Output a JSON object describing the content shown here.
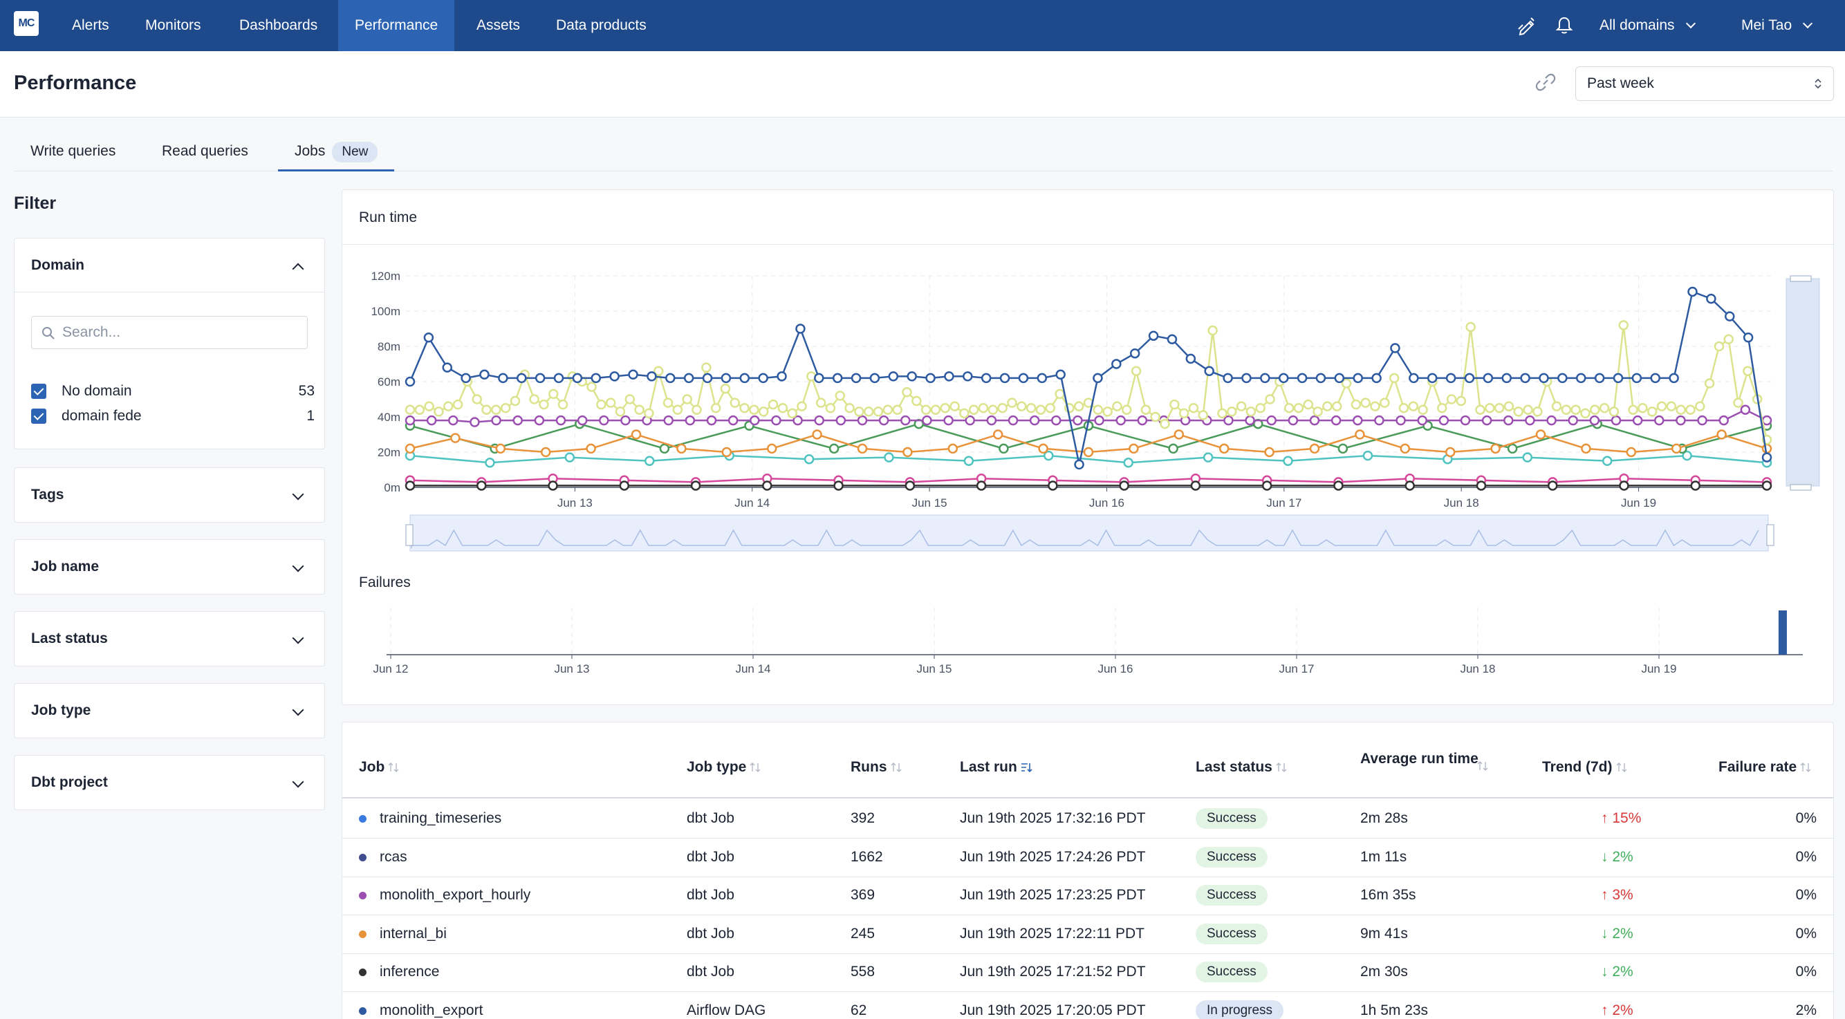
{
  "nav": {
    "logo": "MC",
    "items": [
      "Alerts",
      "Monitors",
      "Dashboards",
      "Performance",
      "Assets",
      "Data products"
    ],
    "active": "Performance",
    "domain_selector": "All domains",
    "user": "Mei Tao"
  },
  "header": {
    "title": "Performance",
    "time_range": "Past week"
  },
  "tabs": {
    "items": [
      "Write queries",
      "Read queries",
      "Jobs"
    ],
    "active": "Jobs",
    "jobs_badge": "New"
  },
  "filter": {
    "title": "Filter",
    "domain": {
      "label": "Domain",
      "search_placeholder": "Search...",
      "options": [
        {
          "label": "No domain",
          "count": "53",
          "checked": true
        },
        {
          "label": "domain fede",
          "count": "1",
          "checked": true
        }
      ]
    },
    "sections": [
      "Tags",
      "Job name",
      "Last status",
      "Job type",
      "Dbt project"
    ]
  },
  "chart_card": {
    "run_time_title": "Run time",
    "failures_title": "Failures"
  },
  "chart_data": [
    {
      "type": "line",
      "title": "Run time",
      "y_ticks": [
        "0m",
        "20m",
        "40m",
        "60m",
        "80m",
        "100m",
        "120m"
      ],
      "ylim": [
        0,
        120
      ],
      "x_ticks": [
        "Jun 13",
        "Jun 14",
        "Jun 15",
        "Jun 16",
        "Jun 17",
        "Jun 18",
        "Jun 19"
      ],
      "grid": true,
      "series": [
        {
          "color": "#2d5aa0",
          "values": [
            60,
            85,
            68,
            62,
            64,
            62,
            62,
            62,
            62,
            62,
            62,
            63,
            64,
            63,
            62,
            62,
            62,
            62,
            62,
            62,
            63,
            90,
            62,
            62,
            62,
            62,
            63,
            63,
            62,
            63,
            63,
            62,
            62,
            62,
            62,
            64,
            13,
            62,
            70,
            76,
            86,
            84,
            73,
            66,
            62,
            62,
            62,
            62,
            62,
            62,
            62,
            62,
            62,
            79,
            62,
            62,
            62,
            62,
            62,
            62,
            62,
            62,
            62,
            62,
            62,
            62,
            62,
            62,
            62,
            111,
            107,
            97,
            85,
            17
          ]
        },
        {
          "color": "#dbe48c",
          "values": [
            44,
            44,
            46,
            43,
            46,
            47,
            60,
            50,
            44,
            44,
            45,
            49,
            64,
            50,
            47,
            53,
            47,
            63,
            60,
            57,
            47,
            48,
            43,
            50,
            44,
            42,
            66,
            48,
            44,
            50,
            44,
            68,
            45,
            56,
            48,
            45,
            44,
            43,
            47,
            45,
            42,
            46,
            63,
            48,
            45,
            52,
            45,
            43,
            43,
            43,
            44,
            44,
            54,
            49,
            44,
            44,
            45,
            46,
            42,
            44,
            45,
            44,
            45,
            48,
            46,
            45,
            44,
            45,
            53,
            45,
            46,
            48,
            44,
            43,
            46,
            44,
            66,
            44,
            40,
            36,
            47,
            42,
            45,
            41,
            89,
            42,
            43,
            46,
            43,
            45,
            50,
            60,
            45,
            45,
            47,
            43,
            46,
            46,
            59,
            47,
            48,
            46,
            48,
            62,
            45,
            46,
            44,
            60,
            45,
            50,
            49,
            91,
            44,
            45,
            45,
            46,
            43,
            44,
            43,
            60,
            46,
            44,
            44,
            42,
            44,
            45,
            43,
            92,
            44,
            45,
            43,
            46,
            46,
            44,
            44,
            46,
            59,
            80,
            84,
            48,
            66,
            50,
            27
          ]
        },
        {
          "color": "#9b4fb0",
          "values": [
            38,
            38,
            38,
            37,
            38,
            38,
            38,
            38,
            38,
            38,
            38,
            38,
            38,
            38,
            38,
            38,
            38,
            38,
            38,
            38,
            38,
            38,
            38,
            38,
            38,
            38,
            38,
            38,
            38,
            38,
            38,
            38,
            38,
            38,
            38,
            38,
            38,
            38,
            38,
            38,
            38,
            38,
            38,
            38,
            38,
            38,
            38,
            38,
            38,
            38,
            38,
            38,
            38,
            38,
            38,
            38,
            38,
            38,
            38,
            38,
            38,
            38,
            44,
            38
          ]
        },
        {
          "color": "#e8923a",
          "values": [
            22,
            28,
            22,
            20,
            22,
            30,
            22,
            20,
            22,
            30,
            22,
            20,
            22,
            30,
            22,
            20,
            22,
            30,
            22,
            20,
            22,
            30,
            22,
            20,
            22,
            30,
            22,
            20,
            22,
            30,
            22
          ]
        },
        {
          "color": "#4a9a5a",
          "values": [
            35,
            22,
            36,
            22,
            35,
            22,
            36,
            22,
            35,
            22,
            36,
            22,
            35,
            22,
            36,
            22,
            35
          ]
        },
        {
          "color": "#4ec3c0",
          "values": [
            18,
            14,
            17,
            15,
            18,
            16,
            17,
            15,
            18,
            14,
            17,
            15,
            18,
            16,
            17,
            15,
            18,
            14
          ]
        },
        {
          "color": "#d5479a",
          "values": [
            4,
            3,
            5,
            4,
            3,
            5,
            4,
            3,
            5,
            4,
            3,
            5,
            4,
            3,
            5,
            4,
            3,
            5,
            4,
            3
          ]
        },
        {
          "color": "#333333",
          "values": [
            1,
            1,
            1,
            1,
            1,
            1,
            1,
            1,
            1,
            1,
            1,
            1,
            1,
            1,
            1,
            1,
            1,
            1,
            1,
            1
          ]
        }
      ]
    },
    {
      "type": "bar",
      "title": "Failures",
      "x_ticks": [
        "Jun 12",
        "Jun 13",
        "Jun 14",
        "Jun 15",
        "Jun 16",
        "Jun 17",
        "Jun 18",
        "Jun 19"
      ],
      "bars": [
        {
          "x": "Jun 19",
          "offset_days": 0.66,
          "value": 1,
          "color": "#2d5aa0"
        }
      ]
    }
  ],
  "table": {
    "columns": [
      "Job",
      "Job type",
      "Runs",
      "Last run",
      "Last status",
      "Average run time",
      "Trend (7d)",
      "Failure rate"
    ],
    "rows": [
      {
        "color": "#3b7be0",
        "job": "training_timeseries",
        "type": "dbt Job",
        "runs": "392",
        "last_run": "Jun 19th 2025 17:32:16 PDT",
        "status": "Success",
        "avg": "2m 28s",
        "trend": "↑ 15%",
        "trend_dir": "up",
        "failure": "0%"
      },
      {
        "color": "#3e4e8f",
        "job": "rcas",
        "type": "dbt Job",
        "runs": "1662",
        "last_run": "Jun 19th 2025 17:24:26 PDT",
        "status": "Success",
        "avg": "1m 11s",
        "trend": "↓ 2%",
        "trend_dir": "down",
        "failure": "0%"
      },
      {
        "color": "#9b4fb0",
        "job": "monolith_export_hourly",
        "type": "dbt Job",
        "runs": "369",
        "last_run": "Jun 19th 2025 17:23:25 PDT",
        "status": "Success",
        "avg": "16m 35s",
        "trend": "↑ 3%",
        "trend_dir": "up",
        "failure": "0%"
      },
      {
        "color": "#e8923a",
        "job": "internal_bi",
        "type": "dbt Job",
        "runs": "245",
        "last_run": "Jun 19th 2025 17:22:11 PDT",
        "status": "Success",
        "avg": "9m 41s",
        "trend": "↓ 2%",
        "trend_dir": "down",
        "failure": "0%"
      },
      {
        "color": "#333333",
        "job": "inference",
        "type": "dbt Job",
        "runs": "558",
        "last_run": "Jun 19th 2025 17:21:52 PDT",
        "status": "Success",
        "avg": "2m 30s",
        "trend": "↓ 2%",
        "trend_dir": "down",
        "failure": "0%"
      },
      {
        "color": "#2d5aa0",
        "job": "monolith_export",
        "type": "Airflow DAG",
        "runs": "62",
        "last_run": "Jun 19th 2025 17:20:05 PDT",
        "status": "In progress",
        "avg": "1h 5m 23s",
        "trend": "↑ 2%",
        "trend_dir": "up",
        "failure": "2%"
      }
    ]
  }
}
